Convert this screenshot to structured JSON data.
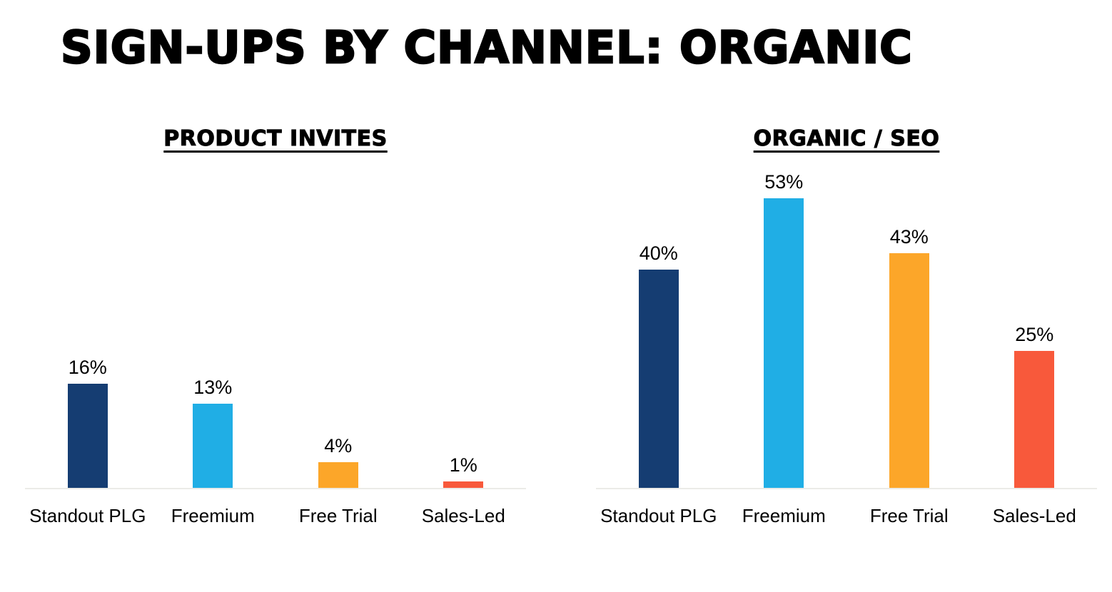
{
  "page_title": "SIGN-UPS BY CHANNEL: ORGANIC",
  "colors": {
    "background": "#ffffff",
    "text": "#000000",
    "baseline": "#ebebe8",
    "navy": "#153D72",
    "cyan": "#20AEE5",
    "orange": "#FCA629",
    "red_orange": "#F8593B"
  },
  "chart_data": [
    {
      "type": "bar",
      "title": "PRODUCT INVITES",
      "categories": [
        "Standout PLG",
        "Freemium",
        "Free Trial",
        "Sales-Led"
      ],
      "values": [
        16,
        13,
        4,
        1
      ],
      "value_labels": [
        "16%",
        "13%",
        "4%",
        "1%"
      ],
      "bar_colors": [
        "#153D72",
        "#20AEE5",
        "#FCA629",
        "#F8593B"
      ],
      "xlabel": "",
      "ylabel": "",
      "ylim": [
        0,
        50
      ],
      "grid": false,
      "legend": false,
      "value_labels_position": "above-bars"
    },
    {
      "type": "bar",
      "title": "ORGANIC / SEO",
      "categories": [
        "Standout PLG",
        "Freemium",
        "Free Trial",
        "Sales-Led"
      ],
      "values": [
        40,
        53,
        43,
        25
      ],
      "value_labels": [
        "40%",
        "53%",
        "43%",
        "25%"
      ],
      "bar_colors": [
        "#153D72",
        "#20AEE5",
        "#FCA629",
        "#F8593B"
      ],
      "xlabel": "",
      "ylabel": "",
      "ylim": [
        0,
        60
      ],
      "grid": false,
      "legend": false,
      "value_labels_position": "above-bars"
    }
  ]
}
